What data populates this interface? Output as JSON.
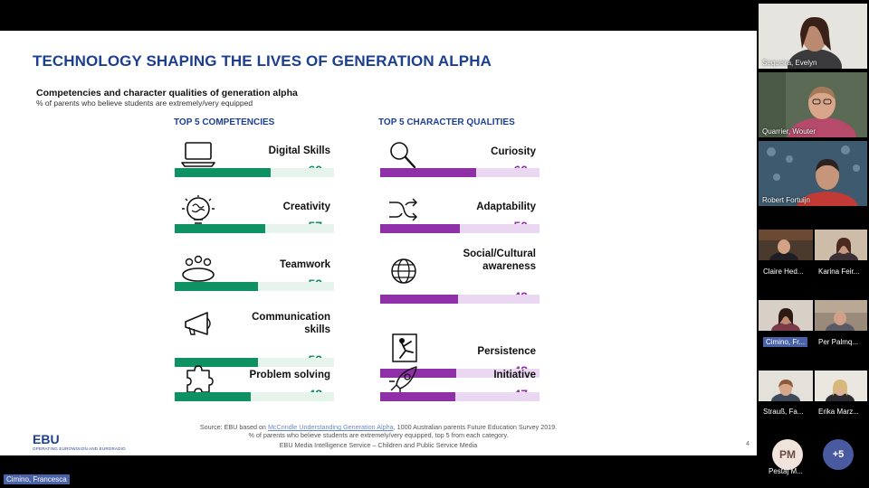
{
  "slide": {
    "title": "TECHNOLOGY SHAPING THE LIVES OF GENERATION ALPHA",
    "subtitle": "Competencies and character qualities of generation alpha",
    "note": "% of parents who believe students are extremely/very equipped",
    "competencies": {
      "header": "TOP 5 COMPETENCIES",
      "items": [
        {
          "label": "Digital Skills",
          "label2": "",
          "value": 60,
          "value_text": "60",
          "icon": "laptop-icon"
        },
        {
          "label": "Creativity",
          "label2": "",
          "value": 57,
          "value_text": "57",
          "icon": "brain-bulb-icon"
        },
        {
          "label": "Teamwork",
          "label2": "",
          "value": 52,
          "value_text": "52",
          "icon": "team-table-icon"
        },
        {
          "label": "Communication",
          "label2": "skills",
          "value": 52,
          "value_text": "52",
          "icon": "megaphone-icon"
        },
        {
          "label": "Problem solving",
          "label2": "",
          "value": 48,
          "value_text": "48",
          "icon": "puzzle-icon"
        }
      ]
    },
    "qualities": {
      "header": "TOP 5 CHARACTER QUALITIES",
      "items": [
        {
          "label": "Curiosity",
          "label2": "",
          "value": 60,
          "value_text": "60",
          "icon": "magnifier-icon"
        },
        {
          "label": "Adaptability",
          "label2": "",
          "value": 50,
          "value_text": "50",
          "icon": "shuffle-arrows-icon"
        },
        {
          "label": "Social/Cultural",
          "label2": "awareness",
          "value": 49,
          "value_text": "49",
          "icon": "globe-icon"
        },
        {
          "label": "Persistence",
          "label2": "",
          "value": 48,
          "value_text": "48",
          "icon": "climber-icon"
        },
        {
          "label": "Initiative",
          "label2": "",
          "value": 47,
          "value_text": "47",
          "icon": "rocket-icon"
        }
      ]
    },
    "percent_sign": "%",
    "source_prefix": "Source: EBU based on ",
    "source_link": "McCrindle Understanding Generation Alpha",
    "source_suffix": ", 1000 Australian parents Future Education Survey 2019.",
    "source_line2": "% of parents who believe students are extremely/very equipped, top 5 from each category.",
    "source_line3": "EBU Media Intelligence Service – Children and Public Service Media",
    "logo_text": "EBU",
    "logo_sub": "OPERATING EUROWISION AND EURORADIO",
    "page_number": "4"
  },
  "participants": {
    "p1": "Sequeira, Evelyn",
    "p2": "Quarrier, Wouter",
    "p3": "Robert Fortuijn",
    "p4": "Claire Hed...",
    "p5": "Karina Feir...",
    "p6": "Cimino, Fr...",
    "p7": "Per Palmq...",
    "p8": "Strauß, Fa...",
    "p9": "Erika Marz...",
    "p10_initials": "PM",
    "p10": "Pestaj M...",
    "more": "+5",
    "active_speaker": "Cimino, Francesca"
  },
  "colors": {
    "title_blue": "#1d3f8f",
    "green": "#0e9264",
    "purple": "#9030a8",
    "highlight": "#4a63a8"
  }
}
